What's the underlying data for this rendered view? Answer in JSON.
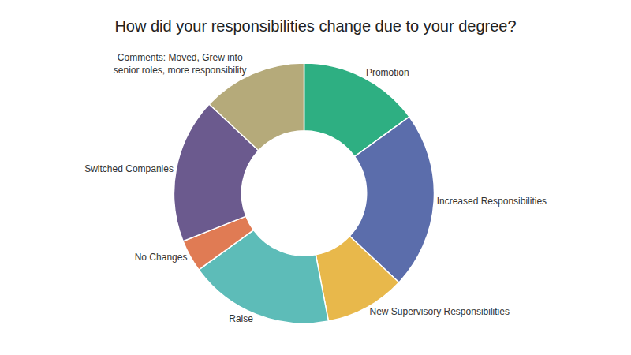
{
  "chart_data": {
    "type": "donut",
    "title": "How did your responsibilities change due to your degree?",
    "categories": [
      "Promotion",
      "Increased Responsibilities",
      "New Supervisory Responsibilities",
      "Raise",
      "No Changes",
      "Switched Companies",
      "Comments: Moved, Grew into\nsenior roles, more responsibility"
    ],
    "values": [
      15,
      22,
      10,
      18,
      4,
      18,
      13
    ],
    "colors": [
      "#2eaf82",
      "#5b6dab",
      "#e8b84b",
      "#5dbcb8",
      "#e07b54",
      "#6b5a8e",
      "#b5aa7a"
    ],
    "data_labels": false
  }
}
